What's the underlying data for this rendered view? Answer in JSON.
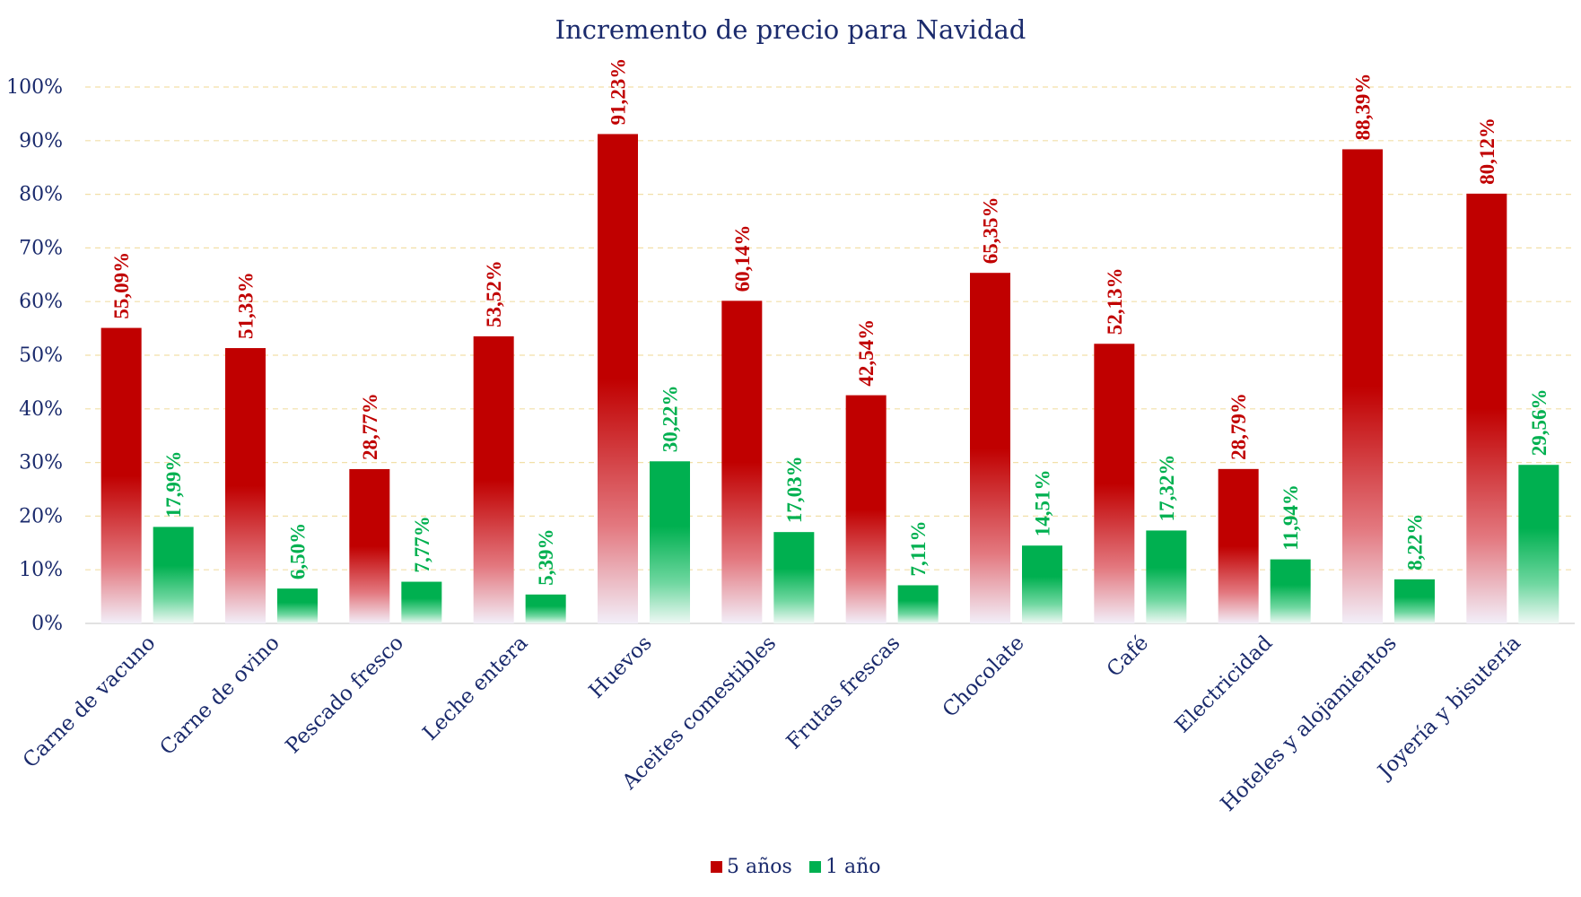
{
  "chart_data": {
    "type": "bar",
    "title": "Incremento de precio para Navidad",
    "xlabel": "",
    "ylabel": "",
    "ylim": [
      0,
      100
    ],
    "yticks": [
      "0%",
      "10%",
      "20%",
      "30%",
      "40%",
      "50%",
      "60%",
      "70%",
      "80%",
      "90%",
      "100%"
    ],
    "grid": true,
    "legend_position": "bottom",
    "categories": [
      "Carne de vacuno",
      "Carne de ovino",
      "Pescado fresco",
      "Leche entera",
      "Huevos",
      "Aceites comestibles",
      "Frutas frescas",
      "Chocolate",
      "Café",
      "Electricidad",
      "Hoteles y alojamientos",
      "Joyería y bisutería"
    ],
    "series": [
      {
        "name": "5 años",
        "color": "#c00000",
        "values": [
          55.09,
          51.33,
          28.77,
          53.52,
          91.23,
          60.14,
          42.54,
          65.35,
          52.13,
          28.79,
          88.39,
          80.12
        ],
        "labels": [
          "55,09%",
          "51,33%",
          "28,77%",
          "53,52%",
          "91,23%",
          "60,14%",
          "42,54%",
          "65,35%",
          "52,13%",
          "28,79%",
          "88,39%",
          "80,12%"
        ]
      },
      {
        "name": "1 año",
        "color": "#00b050",
        "values": [
          17.99,
          6.5,
          7.77,
          5.39,
          30.22,
          17.03,
          7.11,
          14.51,
          17.32,
          11.94,
          8.22,
          29.56
        ],
        "labels": [
          "17,99%",
          "6,50%",
          "7,77%",
          "5,39%",
          "30,22%",
          "17,03%",
          "7,11%",
          "14,51%",
          "17,32%",
          "11,94%",
          "8,22%",
          "29,56%"
        ]
      }
    ]
  }
}
